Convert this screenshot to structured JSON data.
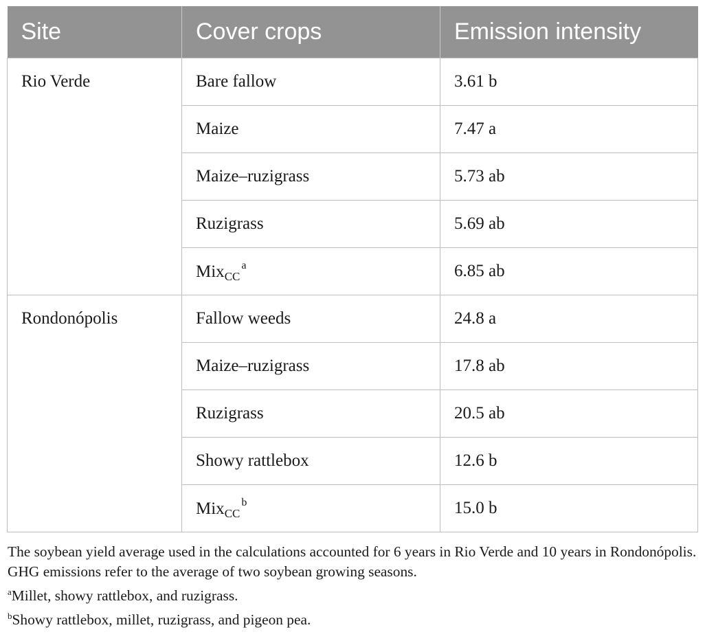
{
  "table": {
    "headers": [
      "Site",
      "Cover crops",
      "Emission intensity"
    ],
    "groups": [
      {
        "site": "Rio Verde",
        "rows": [
          {
            "crop": "Bare fallow",
            "value": "3.61 b"
          },
          {
            "crop": "Maize",
            "value": "7.47 a"
          },
          {
            "crop": "Maize–ruzigrass",
            "value": "5.73 ab"
          },
          {
            "crop": "Ruzigrass",
            "value": "5.69 ab"
          },
          {
            "crop": "Mix",
            "crop_sub": "CC",
            "crop_sup": "a",
            "value": "6.85 ab"
          }
        ]
      },
      {
        "site": "Rondonópolis",
        "rows": [
          {
            "crop": "Fallow weeds",
            "value": "24.8 a"
          },
          {
            "crop": "Maize–ruzigrass",
            "value": "17.8 ab"
          },
          {
            "crop": "Ruzigrass",
            "value": "20.5 ab"
          },
          {
            "crop": "Showy rattlebox",
            "value": "12.6 b"
          },
          {
            "crop": "Mix",
            "crop_sub": "CC",
            "crop_sup": "b",
            "value": "15.0 b"
          }
        ]
      }
    ]
  },
  "footnotes": {
    "general": "The soybean yield average used in the calculations accounted for 6 years in Rio Verde and 10 years in Rondonópolis. GHG emissions refer to the average of two soybean growing seasons.",
    "a_marker": "a",
    "a_text": "Millet, showy rattlebox, and ruzigrass.",
    "b_marker": "b",
    "b_text": "Showy rattlebox, millet, ruzigrass, and pigeon pea."
  }
}
